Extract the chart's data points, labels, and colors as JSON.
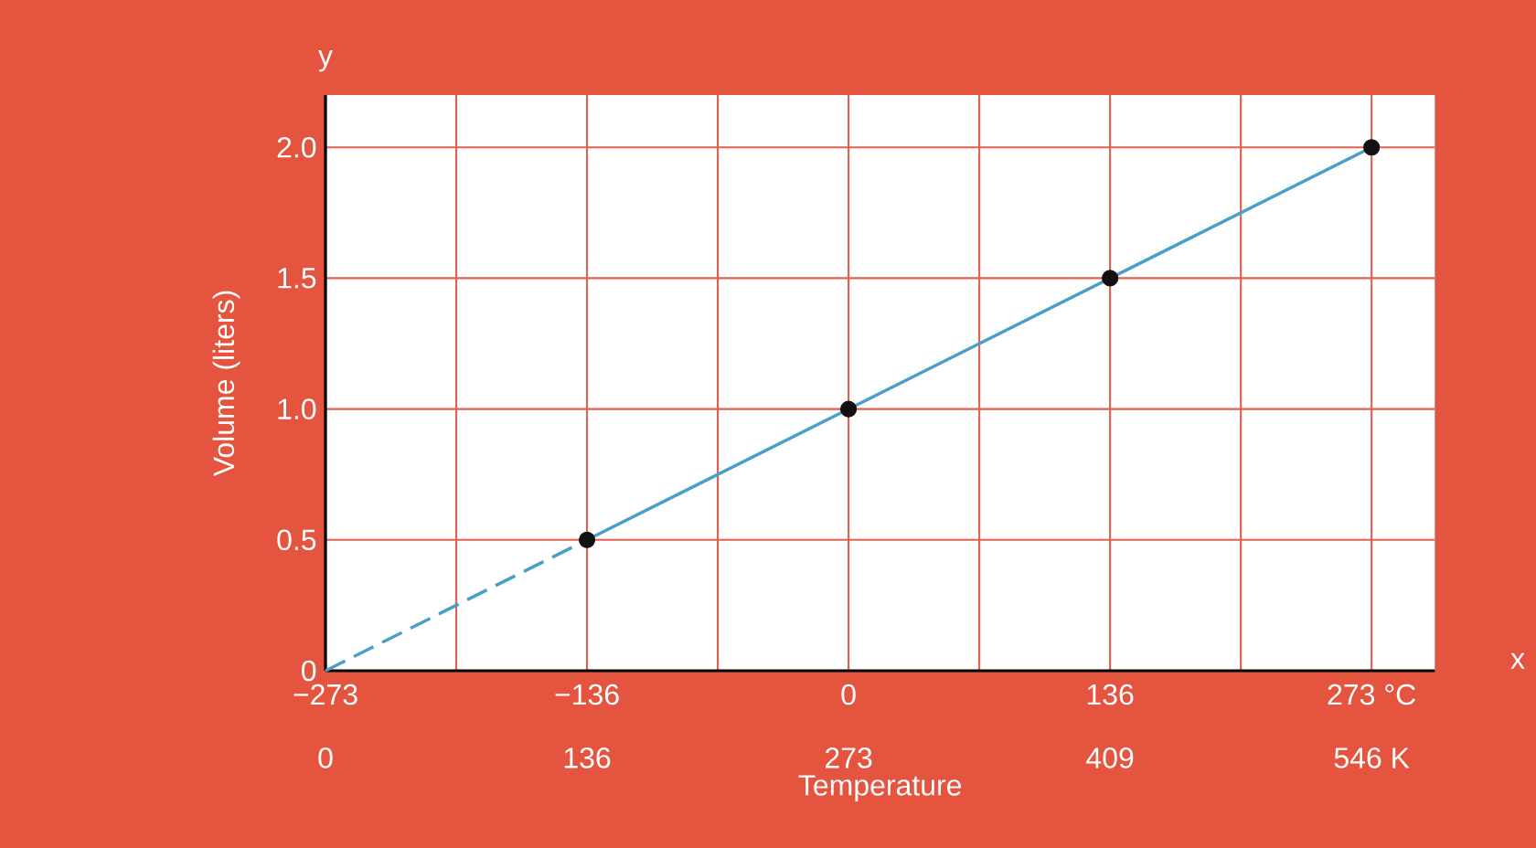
{
  "chart_data": {
    "type": "line",
    "xlabel": "Temperature",
    "ylabel": "Volume (liters)",
    "annotations": [
      "y",
      "x"
    ],
    "xlim": [
      -273,
      306
    ],
    "ylim": [
      0,
      2.2
    ],
    "xticks": [
      {
        "value": -273,
        "label": "−273"
      },
      {
        "value": -204.75,
        "label": null
      },
      {
        "value": -136.5,
        "label": "−136"
      },
      {
        "value": -68.25,
        "label": null
      },
      0,
      {
        "value": 68.25,
        "label": null
      },
      {
        "value": 136.5,
        "label": "136"
      },
      {
        "value": 204.75,
        "label": null
      },
      {
        "value": 273,
        "label": "273 °C"
      }
    ],
    "x2lim": [
      0,
      579
    ],
    "x2ticks": [
      0,
      {
        "value": 136.5,
        "label": "136"
      },
      273,
      {
        "value": 409.5,
        "label": "409"
      },
      {
        "value": 546,
        "label": "546  K"
      }
    ],
    "yticks": [
      0,
      0.5,
      {
        "value": 1,
        "label": "1.0"
      },
      1.5,
      {
        "value": 2,
        "label": "2.0"
      }
    ],
    "grid": true,
    "series": [
      {
        "line_style": "dashed",
        "color": "#4a9fc9",
        "x": [
          -273,
          -136.5
        ],
        "values": [
          0,
          0.5
        ]
      },
      {
        "line_style": "solid",
        "color": "#4a9fc9",
        "x": [
          -136.5,
          273
        ],
        "values": [
          0.5,
          2
        ]
      },
      {
        "type": "scatter",
        "marker": "circle",
        "color": "#111111",
        "x": [
          -136.5,
          0,
          136.5,
          273
        ],
        "values": [
          0.5,
          1,
          1.5,
          2
        ]
      }
    ]
  }
}
